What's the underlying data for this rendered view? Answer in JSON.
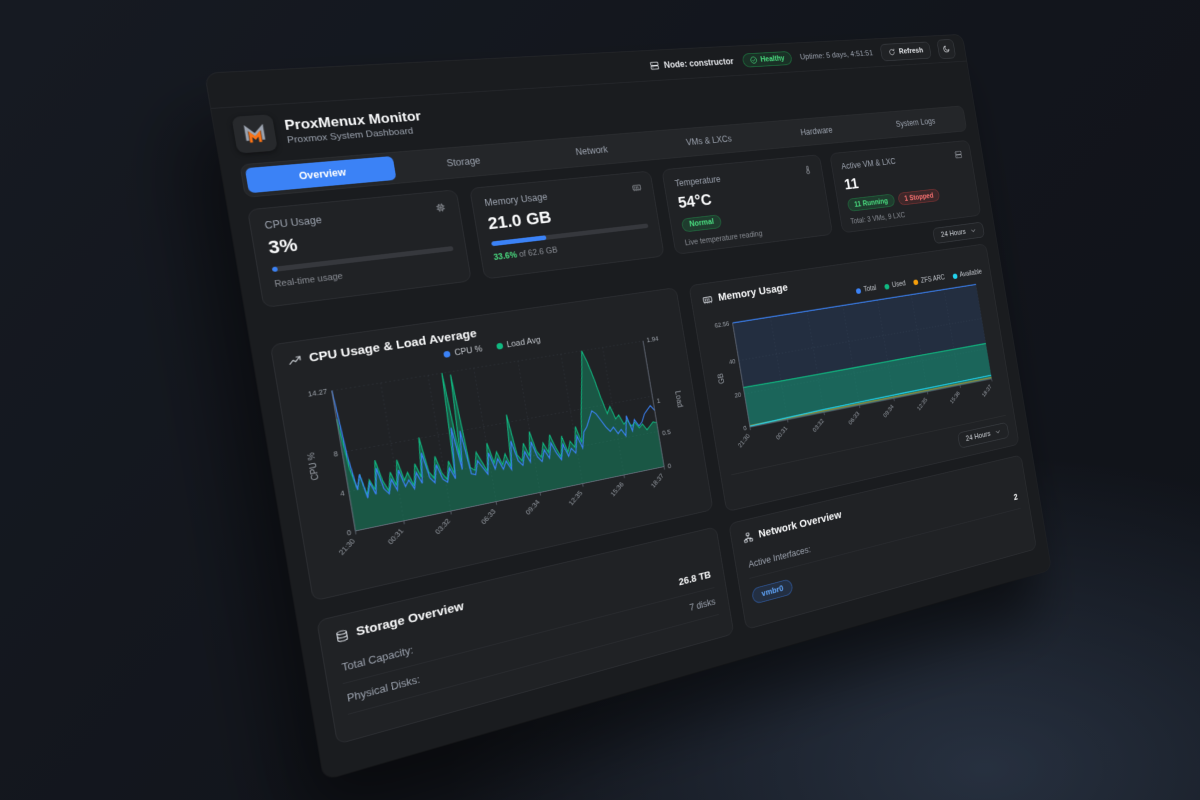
{
  "topbar": {
    "node": "Node: constructor",
    "health": "Healthy",
    "uptime": "Uptime: 5 days, 4:51:51",
    "refresh": "Refresh"
  },
  "header": {
    "title": "ProxMenux Monitor",
    "subtitle": "Proxmox System Dashboard"
  },
  "tabs": {
    "items": [
      "Overview",
      "Storage",
      "Network",
      "VMs & LXCs",
      "Hardware",
      "System Logs"
    ],
    "active": "Overview"
  },
  "stats": {
    "cpu": {
      "label": "CPU Usage",
      "value": "3%",
      "bar_width": "3%",
      "subtitle": "Real-time usage"
    },
    "memory": {
      "label": "Memory Usage",
      "value": "21.0 GB",
      "bar_width": "33.6%",
      "detail_pct": "33.6%",
      "detail_rest": " of 62.6 GB"
    },
    "temperature": {
      "label": "Temperature",
      "value": "54°C",
      "badge": "Normal",
      "subtitle": "Live temperature reading"
    },
    "vms": {
      "label": "Active VM & LXC",
      "value": "11",
      "running": "11 Running",
      "stopped": "1 Stopped",
      "subtitle": "Total: 3 VMs, 9 LXC"
    }
  },
  "time_range": "24 Hours",
  "icons": [
    "server-icon",
    "check-circle-icon",
    "refresh-icon",
    "moon-icon",
    "cpu-icon",
    "memory-icon",
    "thermometer-icon",
    "trending-up-icon",
    "network-icon",
    "disks-icon",
    "chevron-down-icon"
  ],
  "colors": {
    "accent": "#3b82f6",
    "green": "#4ade80",
    "red": "#f87171",
    "cyan": "#22d3ee",
    "orange": "#f59e0b"
  },
  "chart_data": [
    {
      "type": "area",
      "title": "CPU Usage & Load Average",
      "x_ticks": [
        "21:30",
        "00:31",
        "03:32",
        "06:33",
        "09:34",
        "12:35",
        "15:36",
        "18:37"
      ],
      "ylabel_left": "CPU %",
      "ylabel_right": "Load",
      "ylim_left": [
        0,
        14.27
      ],
      "ylim_right": [
        0,
        1.94
      ],
      "yticks_left": [
        0,
        4,
        8,
        14.27
      ],
      "yticks_right": [
        0,
        0.5,
        1,
        1.94
      ],
      "grid": true,
      "legend_position": "top",
      "series": [
        {
          "name": "CPU %",
          "color": "#3b82f6",
          "axis": "left",
          "values": [
            14.27,
            7.5,
            4.0,
            5.5,
            3.0,
            4.5,
            3.2,
            5.8,
            3.6,
            3.0,
            4.4,
            3.2,
            5.2,
            3.4,
            4.0,
            3.0,
            4.6,
            3.4,
            6.5,
            3.8,
            3.2,
            5.0,
            3.4,
            3.0,
            4.4,
            3.2,
            8.5,
            4.0,
            8.0,
            3.4,
            3.2,
            4.6,
            3.8,
            3.0,
            5.2,
            3.4,
            4.4,
            3.2,
            4.0,
            3.0,
            6.0,
            3.8,
            3.2,
            4.6,
            3.4,
            5.5,
            3.8,
            3.2,
            4.4,
            3.4,
            5.0,
            3.8,
            3.0,
            4.6,
            3.2,
            4.0,
            3.4,
            5.2,
            3.8,
            5.5,
            6.0,
            6.8,
            7.6,
            7.2,
            6.4,
            5.6,
            5.0,
            5.4,
            4.6,
            5.0,
            4.2,
            6.4,
            4.6,
            5.8,
            5.0,
            5.4,
            6.2,
            6.6,
            7.0,
            6.4
          ]
        },
        {
          "name": "Load Avg",
          "color": "#10b981",
          "fill": "rgba(16,185,129,0.35)",
          "axis": "right",
          "values": [
            1.55,
            0.85,
            0.55,
            0.75,
            0.45,
            0.65,
            0.5,
            0.9,
            0.6,
            0.45,
            0.7,
            0.5,
            0.85,
            0.55,
            0.65,
            0.45,
            0.75,
            0.55,
            1.1,
            0.6,
            0.5,
            0.8,
            0.55,
            0.45,
            0.7,
            0.5,
            1.94,
            0.65,
            1.9,
            0.55,
            0.5,
            0.75,
            0.6,
            0.45,
            0.85,
            0.55,
            0.7,
            0.5,
            0.65,
            0.45,
            1.2,
            0.6,
            0.5,
            0.75,
            0.55,
            0.9,
            0.6,
            0.5,
            0.7,
            0.55,
            0.8,
            0.6,
            0.45,
            0.75,
            0.5,
            0.65,
            0.55,
            0.85,
            0.6,
            1.0,
            1.3,
            1.6,
            1.94,
            1.75,
            1.5,
            1.2,
            0.95,
            1.05,
            0.85,
            0.9,
            0.75,
            0.8,
            0.7,
            0.75,
            0.65,
            0.7,
            0.6,
            0.65,
            0.7,
            0.68
          ]
        }
      ]
    },
    {
      "type": "area",
      "title": "Memory Usage",
      "x_ticks": [
        "21:30",
        "00:31",
        "03:32",
        "06:33",
        "09:34",
        "12:35",
        "15:36",
        "18:37"
      ],
      "ylabel": "GB",
      "ylim": [
        0,
        62.56
      ],
      "yticks": [
        0,
        20,
        40,
        62.56
      ],
      "grid": true,
      "legend_position": "top",
      "series": [
        {
          "name": "Total",
          "color": "#3b82f6",
          "fill": "rgba(59,130,246,0.13)",
          "values": [
            62.56,
            62.56,
            62.56,
            62.56,
            62.56,
            62.56,
            62.56,
            62.56
          ]
        },
        {
          "name": "Used",
          "color": "#10b981",
          "fill": "rgba(16,185,129,0.40)",
          "values": [
            23.8,
            23.6,
            23.5,
            23.4,
            23.5,
            23.6,
            23.5,
            23.4
          ]
        },
        {
          "name": "ZFS ARC",
          "color": "#f59e0b",
          "values": [
            0.9,
            0.9,
            0.9,
            0.9,
            0.9,
            0.9,
            0.9,
            0.9
          ]
        },
        {
          "name": "Available",
          "color": "#22d3ee",
          "fill": "rgba(34,211,238,0.10)",
          "values": [
            0.5,
            1.2,
            1.8,
            2.0,
            2.1,
            2.2,
            2.3,
            2.4
          ]
        }
      ]
    }
  ],
  "storage": {
    "title": "Storage Overview",
    "rows": [
      {
        "label": "Total Capacity:",
        "value": "26.8 TB"
      },
      {
        "label": "Physical Disks:",
        "value": "7 disks"
      }
    ]
  },
  "network": {
    "title": "Network Overview",
    "row_label": "Active Interfaces:",
    "row_value": "2",
    "badge": "vmbr0"
  }
}
